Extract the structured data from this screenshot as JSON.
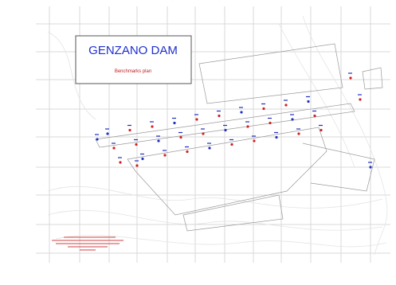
{
  "header": {
    "title": "GENZANO DAM",
    "subtitle": "Benchmarks plan"
  }
}
